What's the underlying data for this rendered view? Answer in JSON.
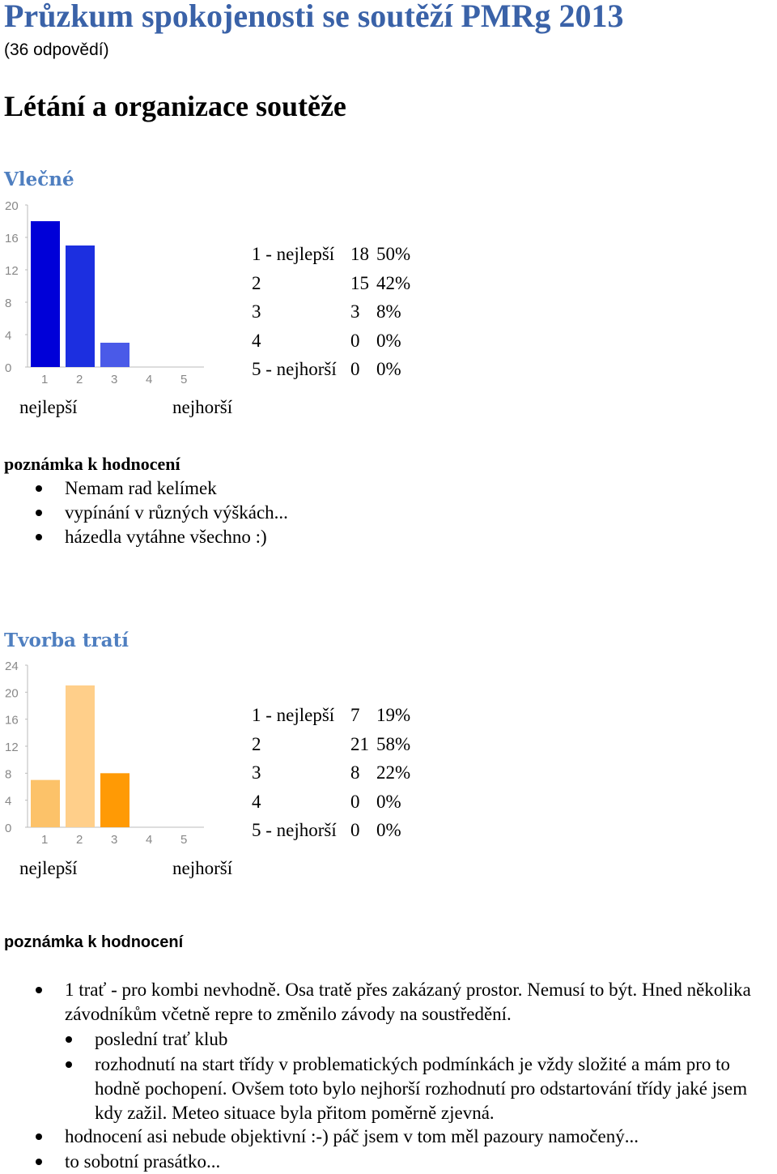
{
  "title": "Průzkum spokojenosti se soutěží PMRg 2013",
  "responses": "(36 odpovědí)",
  "section": "Létání a organizace soutěže",
  "questions": [
    {
      "title": "Vlečné",
      "stats": [
        {
          "label": "1 - nejlepší",
          "count": "18",
          "pct": "50%"
        },
        {
          "label": "2",
          "count": "15",
          "pct": "42%"
        },
        {
          "label": "3",
          "count": "3",
          "pct": "8%"
        },
        {
          "label": "4",
          "count": "0",
          "pct": "0%"
        },
        {
          "label": "5 - nejhorší",
          "count": "0",
          "pct": "0%"
        }
      ],
      "scale_best": "nejlepší",
      "scale_worst": "nejhorší",
      "note_heading": "poznámka k hodnocení",
      "notes": [
        "Nemam rad kelímek",
        "vypínání v různých výškách...",
        "házedla vytáhne všechno :)"
      ]
    },
    {
      "title": "Tvorba tratí",
      "stats": [
        {
          "label": "1 - nejlepší",
          "count": "7",
          "pct": "19%"
        },
        {
          "label": "2",
          "count": "21",
          "pct": "58%"
        },
        {
          "label": "3",
          "count": "8",
          "pct": "22%"
        },
        {
          "label": "4",
          "count": "0",
          "pct": "0%"
        },
        {
          "label": "5 - nejhorší",
          "count": "0",
          "pct": "0%"
        }
      ],
      "scale_best": "nejlepší",
      "scale_worst": "nejhorší",
      "note_heading": "poznámka k hodnocení",
      "notes_first": "1 trať - pro kombi nevhodně. Osa tratě přes zakázaný prostor. Nemusí to být. Hned několika závodníkům včetně repre to změnilo závody na soustředění.",
      "notes_nested": [
        "poslední trať klub",
        "rozhodnutí na start třídy v problematických podmínkách je vždy složité a mám pro to hodně pochopení. Ovšem toto bylo nejhorší rozhodnutí pro odstartování třídy jaké jsem kdy zažil. Meteo situace byla přitom poměrně zjevná."
      ],
      "notes_after": [
        "hodnocení asi nebude objektivní :-) páč jsem v tom měl pazoury namočený...",
        "to sobotní prasátko..."
      ]
    }
  ],
  "chart_data": [
    {
      "type": "bar",
      "categories": [
        "1",
        "2",
        "3",
        "4",
        "5"
      ],
      "values": [
        18,
        15,
        3,
        0,
        0
      ],
      "yticks": [
        "0",
        "4",
        "8",
        "12",
        "16",
        "20"
      ],
      "ylim": [
        0,
        20
      ],
      "colors": [
        "#0000d8",
        "#1c2fe0",
        "#4a5ae8",
        "#6a78ec",
        "#8a94f0"
      ]
    },
    {
      "type": "bar",
      "categories": [
        "1",
        "2",
        "3",
        "4",
        "5"
      ],
      "values": [
        7,
        21,
        8,
        0,
        0
      ],
      "yticks": [
        "0",
        "4",
        "8",
        "12",
        "16",
        "20",
        "24"
      ],
      "ylim": [
        0,
        24
      ],
      "colors": [
        "#fcc269",
        "#ffcf8a",
        "#ff9a05",
        "#ffb040",
        "#ffc060"
      ]
    }
  ]
}
